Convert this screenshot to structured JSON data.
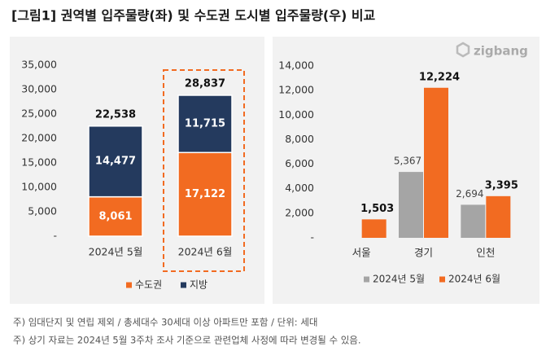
{
  "title": "[그림1] 권역별 입주물량(좌) 및 수도권 도시별 입주물량(우) 비교",
  "logo": "zigbang",
  "footnotes": [
    "주) 임대단지 및 연립 제외 / 총세대수 30세대 이상 아파트만 포함 / 단위: 세대",
    "주) 상기 자료는 2024년 5월 3주차 조사 기준으로 관련업체 사정에 따라 변경될 수 있음."
  ],
  "chart_data": [
    {
      "type": "bar",
      "stacked": true,
      "categories": [
        "2024년 5월",
        "2024년 6월"
      ],
      "series": [
        {
          "name": "수도권",
          "color": "#f26b21",
          "values": [
            8061,
            17122
          ],
          "value_labels": [
            "8,061",
            "17,122"
          ]
        },
        {
          "name": "지방",
          "color": "#243a5e",
          "values": [
            14477,
            11715
          ],
          "value_labels": [
            "14,477",
            "11,715"
          ]
        }
      ],
      "totals": {
        "values": [
          22538,
          28837
        ],
        "value_labels": [
          "22,538",
          "28,837"
        ]
      },
      "ylim": [
        0,
        35000
      ],
      "yticks": [
        {
          "value": 0,
          "label": "-"
        },
        {
          "value": 5000,
          "label": "5,000"
        },
        {
          "value": 10000,
          "label": "10,000"
        },
        {
          "value": 15000,
          "label": "15,000"
        },
        {
          "value": 20000,
          "label": "20,000"
        },
        {
          "value": 25000,
          "label": "25,000"
        },
        {
          "value": 30000,
          "label": "30,000"
        },
        {
          "value": 35000,
          "label": "35,000"
        }
      ]
    },
    {
      "type": "bar",
      "stacked": false,
      "categories": [
        "서울",
        "경기",
        "인천"
      ],
      "series": [
        {
          "name": "2024년 5월",
          "color": "#a5a5a5",
          "values": [
            null,
            5367,
            2694
          ],
          "value_labels": [
            null,
            "5,367",
            "2,694"
          ]
        },
        {
          "name": "2024년 6월",
          "color": "#f26b21",
          "values": [
            1503,
            12224,
            3395
          ],
          "value_labels": [
            "1,503",
            "12,224",
            "3,395"
          ]
        }
      ],
      "ylim": [
        0,
        14000
      ],
      "yticks": [
        {
          "value": 0,
          "label": "-"
        },
        {
          "value": 2000,
          "label": "2,000"
        },
        {
          "value": 4000,
          "label": "4,000"
        },
        {
          "value": 6000,
          "label": "6,000"
        },
        {
          "value": 8000,
          "label": "8,000"
        },
        {
          "value": 10000,
          "label": "10,000"
        },
        {
          "value": 12000,
          "label": "12,000"
        },
        {
          "value": 14000,
          "label": "14,000"
        }
      ]
    }
  ]
}
